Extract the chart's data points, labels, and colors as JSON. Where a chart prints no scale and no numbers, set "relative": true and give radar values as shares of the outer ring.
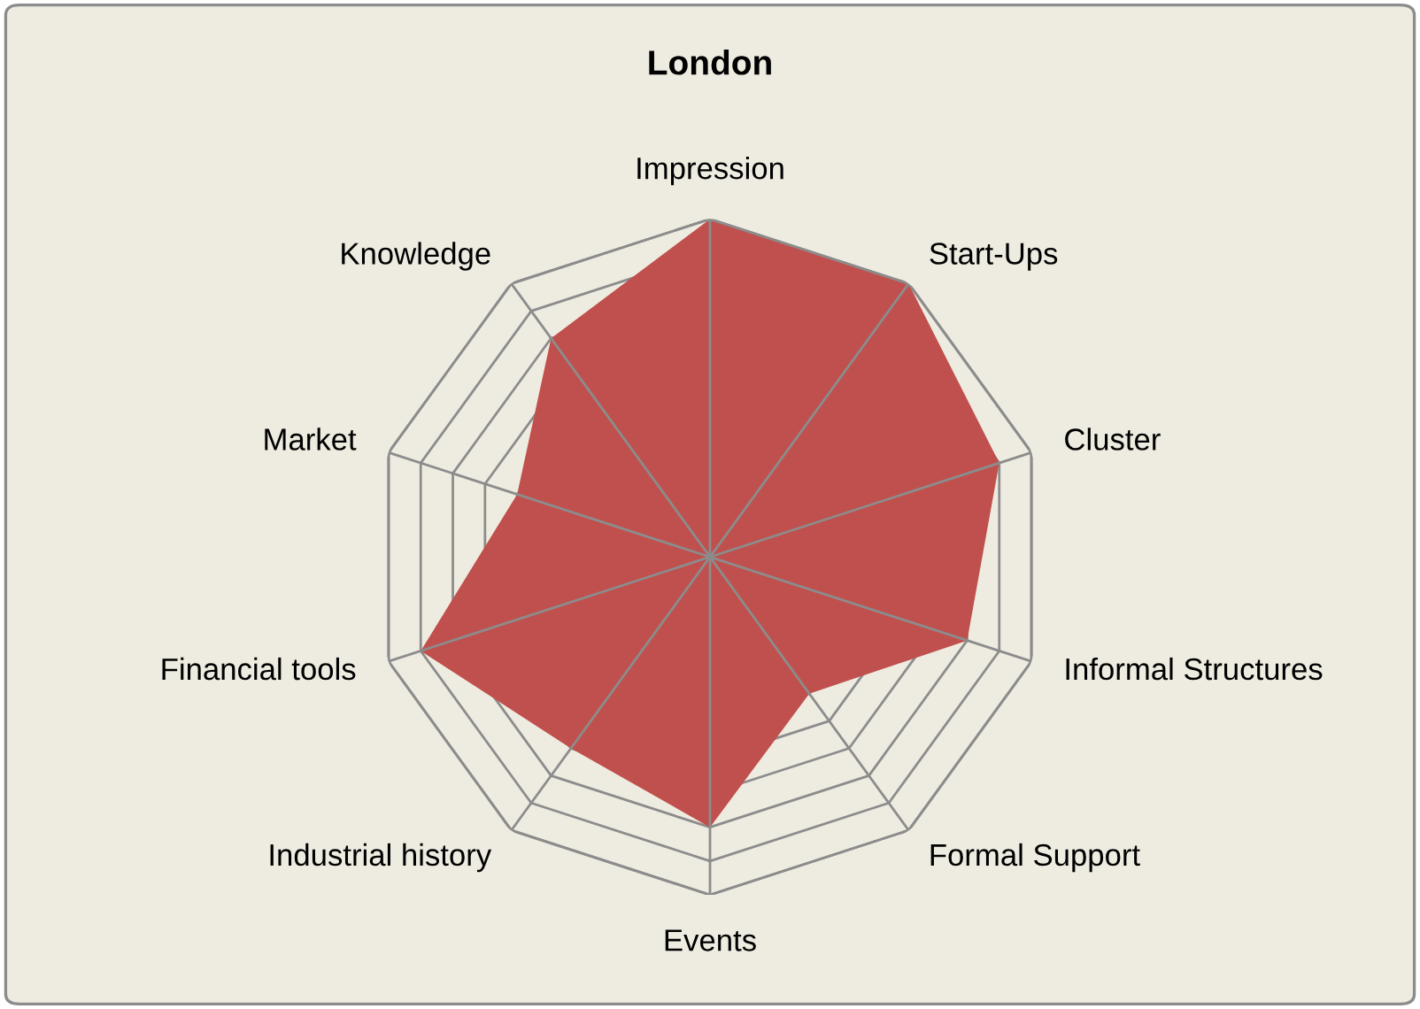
{
  "chart_data": {
    "type": "radar",
    "title": "London",
    "relative": true,
    "grid": true,
    "categories": [
      "Impression",
      "Start-Ups",
      "Cluster",
      "Informal Structures",
      "Formal Support",
      "Events",
      "Industrial history",
      "Financial tools",
      "Market",
      "Knowledge"
    ],
    "series": [
      {
        "color": "#c0504d",
        "values": [
          1.0,
          1.0,
          0.9,
          0.8,
          0.5,
          0.8,
          0.7,
          0.9,
          0.6,
          0.8
        ]
      }
    ]
  }
}
